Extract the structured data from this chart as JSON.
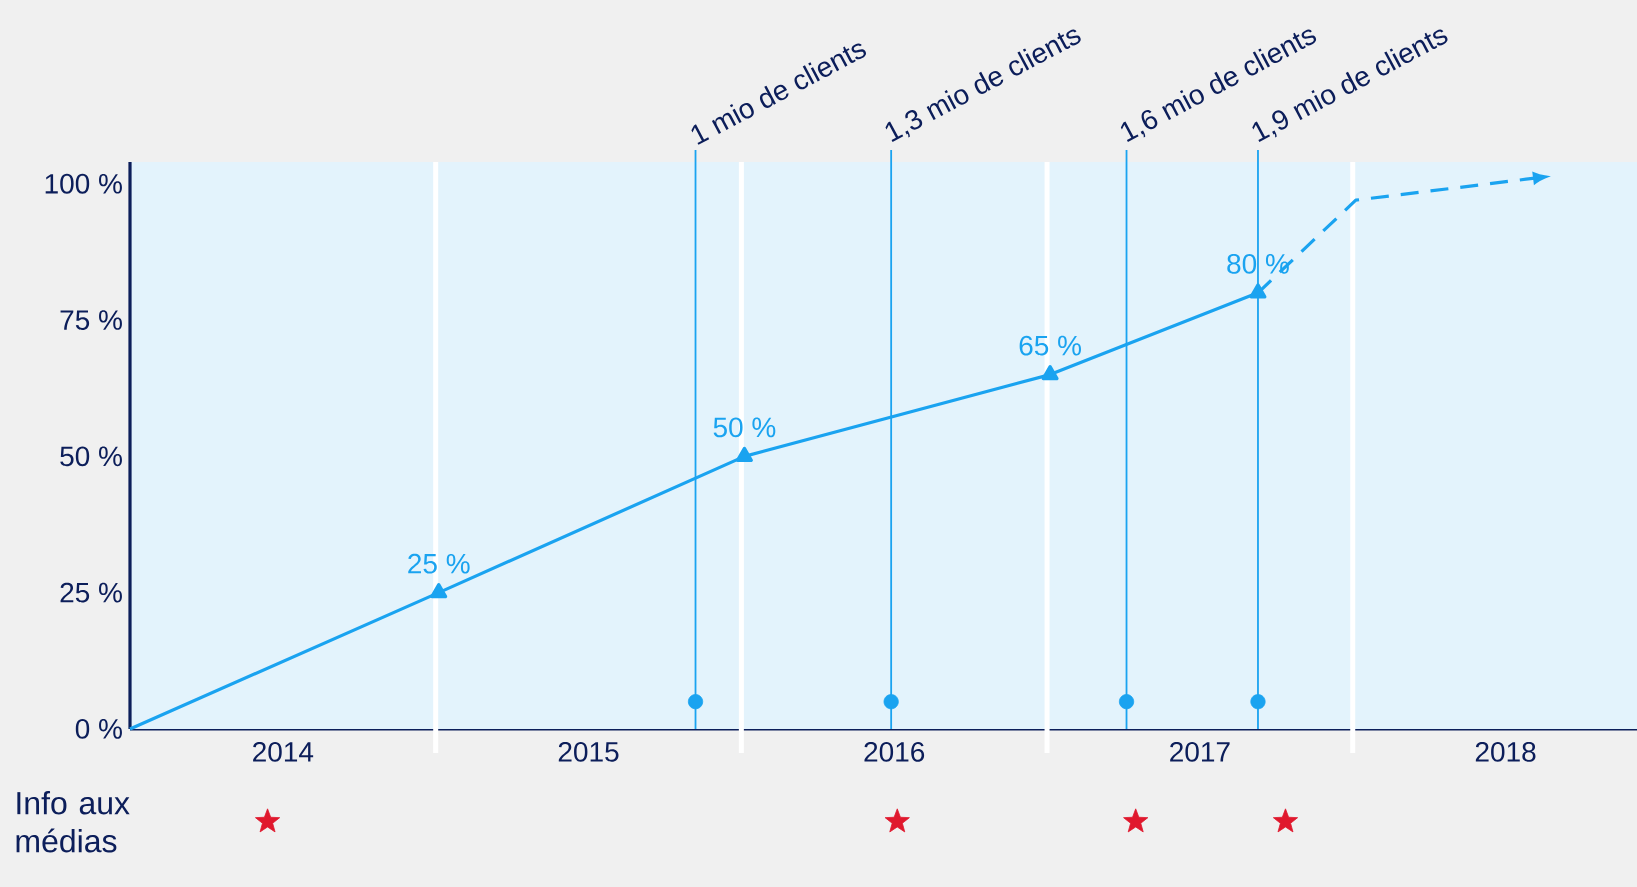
{
  "chart_data": {
    "type": "line",
    "xlim": [
      2014,
      2018.93
    ],
    "ylim": [
      -29,
      104
    ],
    "xticks": [
      {
        "value": 2014.5,
        "label": "2014"
      },
      {
        "value": 2015.5,
        "label": "2015"
      },
      {
        "value": 2016.5,
        "label": "2016"
      },
      {
        "value": 2017.5,
        "label": "2017"
      },
      {
        "value": 2018.5,
        "label": "2018"
      }
    ],
    "yticks": [
      {
        "value": 0,
        "label": "0 %"
      },
      {
        "value": 25,
        "label": "25 %"
      },
      {
        "value": 50,
        "label": "50 %"
      },
      {
        "value": 75,
        "label": "75 %"
      },
      {
        "value": 100,
        "label": "100 %"
      }
    ],
    "series": [
      {
        "x": [
          2014,
          2015.01,
          2016.01,
          2017.01,
          2017.69
        ],
        "values": [
          0,
          25,
          50,
          65,
          80
        ],
        "value_labels": [
          null,
          "25 %",
          "50 %",
          "65 %",
          "80 %"
        ],
        "color": "#1aa3f0",
        "marker": "triangle",
        "line_style": "solid"
      },
      {
        "x": [
          2017.69,
          2018.01,
          2018.59
        ],
        "values": [
          80,
          97,
          101
        ],
        "color": "#1aa3f0",
        "marker": "none",
        "line_style": "dashed"
      },
      {
        "type": "scatter",
        "x": [
          2015.85,
          2016.49,
          2017.26,
          2017.69
        ],
        "values": [
          5,
          5,
          5,
          5
        ],
        "color": "#1aa3f0",
        "marker": "circle"
      },
      {
        "type": "scatter",
        "x": [
          2014.45,
          2016.51,
          2017.29,
          2017.78
        ],
        "values": [
          -17,
          -17,
          -17,
          -17
        ],
        "color": "#e0182d",
        "marker": "star"
      }
    ],
    "ref_lines": [
      {
        "axis": "x",
        "value": 2015,
        "color": "#ffffff"
      },
      {
        "axis": "x",
        "value": 2016,
        "color": "#ffffff"
      },
      {
        "axis": "x",
        "value": 2017,
        "color": "#ffffff"
      },
      {
        "axis": "x",
        "value": 2018,
        "color": "#ffffff"
      },
      {
        "axis": "x",
        "value": 2015.85,
        "label": "1 mio de clients",
        "color": "#1aa3f0"
      },
      {
        "axis": "x",
        "value": 2016.49,
        "label": "1,3 mio de clients",
        "color": "#1aa3f0"
      },
      {
        "axis": "x",
        "value": 2017.26,
        "label": "1,6 mio de clients",
        "color": "#1aa3f0"
      },
      {
        "axis": "x",
        "value": 2017.69,
        "label": "1,9 mio de clients",
        "color": "#1aa3f0"
      }
    ],
    "bands": [
      {
        "axis": "y",
        "from": 0,
        "to": 104,
        "color": "#e3f3fc"
      }
    ],
    "annotations": [
      "Info aux médias"
    ],
    "grid": false
  }
}
